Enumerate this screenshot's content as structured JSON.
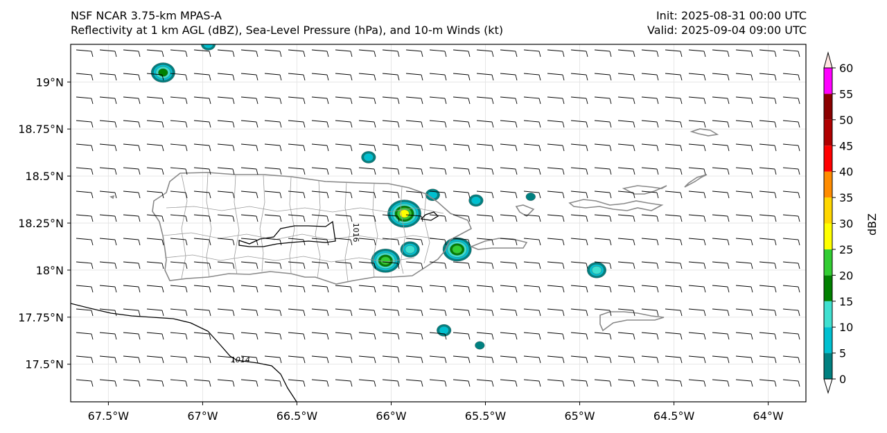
{
  "header": {
    "line1_left": "NSF NCAR 3.75-km MPAS-A",
    "line2_left": "Reflectivity at 1 km AGL (dBZ), Sea-Level Pressure (hPa), and 10-m Winds (kt)",
    "line1_right": "Init: 2025-08-31 00:00 UTC",
    "line2_right": "Valid: 2025-09-04 09:00 UTC"
  },
  "map": {
    "extent": {
      "lon_min": -67.7,
      "lon_max": -63.8,
      "lat_min": 17.3,
      "lat_max": 19.2
    },
    "lon_ticks": [
      -67.5,
      -67,
      -66.5,
      -66,
      -65.5,
      -65,
      -64.5,
      -64
    ],
    "lon_tick_labels": [
      "67.5°W",
      "67°W",
      "66.5°W",
      "66°W",
      "65.5°W",
      "65°W",
      "64.5°W",
      "64°W"
    ],
    "lat_ticks": [
      17.5,
      17.75,
      18,
      18.25,
      18.5,
      18.75,
      19
    ],
    "lat_tick_labels": [
      "17.5°N",
      "17.75°N",
      "18°N",
      "18.25°N",
      "18.5°N",
      "18.75°N",
      "19°N"
    ],
    "isobar_labels": [
      {
        "text": "1016",
        "lon": -66.2,
        "lat": 18.2
      },
      {
        "text": "1014",
        "lon": -66.8,
        "lat": 17.51
      }
    ],
    "colors": {
      "coastline": "#888888",
      "isobar": "#000000",
      "barb": "#000000",
      "grid": "#e6e6e6"
    }
  },
  "colorbar": {
    "label": "dBZ",
    "levels": [
      0,
      5,
      10,
      15,
      20,
      25,
      30,
      35,
      40,
      45,
      50,
      55,
      60
    ],
    "level_labels": [
      "0",
      "5",
      "10",
      "15",
      "20",
      "25",
      "30",
      "35",
      "40",
      "45",
      "50",
      "55",
      "60"
    ],
    "colors": [
      "#ffffff",
      "#008080",
      "#00c0d0",
      "#40e0d0",
      "#008000",
      "#32cd32",
      "#ffff00",
      "#ffd700",
      "#ff8c00",
      "#ff0000",
      "#b00000",
      "#8b0000",
      "#ff00ff",
      "#ffe4e1"
    ]
  },
  "reflectivity_cells": [
    {
      "lon": -67.21,
      "lat": 19.05,
      "dbz": 22
    },
    {
      "lon": -66.97,
      "lat": 19.2,
      "dbz": 12
    },
    {
      "lon": -66.12,
      "lat": 18.6,
      "dbz": 12
    },
    {
      "lon": -65.93,
      "lat": 18.3,
      "dbz": 33
    },
    {
      "lon": -65.9,
      "lat": 18.11,
      "dbz": 18
    },
    {
      "lon": -65.65,
      "lat": 18.11,
      "dbz": 27
    },
    {
      "lon": -66.03,
      "lat": 18.05,
      "dbz": 28
    },
    {
      "lon": -65.78,
      "lat": 18.4,
      "dbz": 12
    },
    {
      "lon": -65.55,
      "lat": 18.37,
      "dbz": 14
    },
    {
      "lon": -65.26,
      "lat": 18.39,
      "dbz": 8
    },
    {
      "lon": -64.91,
      "lat": 18.0,
      "dbz": 16
    },
    {
      "lon": -65.72,
      "lat": 17.68,
      "dbz": 10
    },
    {
      "lon": -65.53,
      "lat": 17.6,
      "dbz": 9
    }
  ]
}
